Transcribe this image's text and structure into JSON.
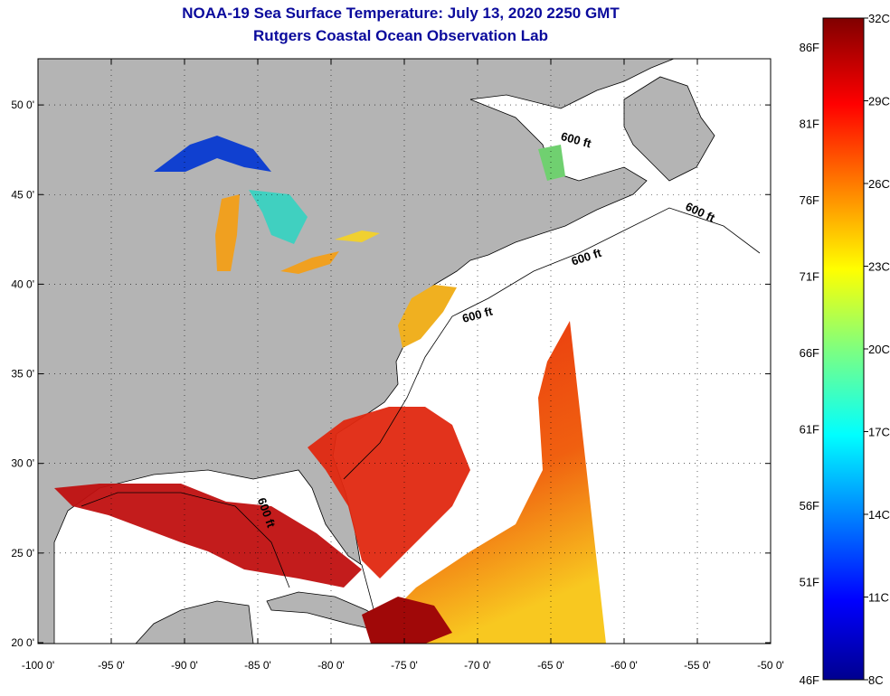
{
  "title": {
    "line1": "NOAA-19 Sea Surface Temperature:  July 13, 2020 2250 GMT",
    "line2": "Rutgers Coastal Ocean Observation Lab"
  },
  "map": {
    "lon_range": [
      -100,
      -50
    ],
    "lat_range": [
      20,
      52.6
    ],
    "x_ticks": [
      "-100 0'",
      "-95 0'",
      "-90 0'",
      "-85 0'",
      "-80 0'",
      "-75 0'",
      "-70 0'",
      "-65 0'",
      "-60 0'",
      "-55 0'",
      "-50 0'"
    ],
    "y_ticks": [
      "20 0'",
      "25 0'",
      "30 0'",
      "35 0'",
      "40 0'",
      "45 0'",
      "50 0'"
    ],
    "contour_labels": [
      "600 ft",
      "600 ft",
      "600 ft",
      "600 ft",
      "600 ft"
    ],
    "colors": {
      "land": "#b4b4b4",
      "no_data": "#ffffff",
      "title": "#0a0a9c"
    }
  },
  "colorbar": {
    "celsius_labels": [
      "32C",
      "29C",
      "26C",
      "23C",
      "20C",
      "17C",
      "14C",
      "11C",
      "8C"
    ],
    "fahrenheit_labels": [
      "86F",
      "81F",
      "76F",
      "71F",
      "66F",
      "61F",
      "56F",
      "51F",
      "46F"
    ],
    "range_c": [
      8,
      32
    ]
  }
}
